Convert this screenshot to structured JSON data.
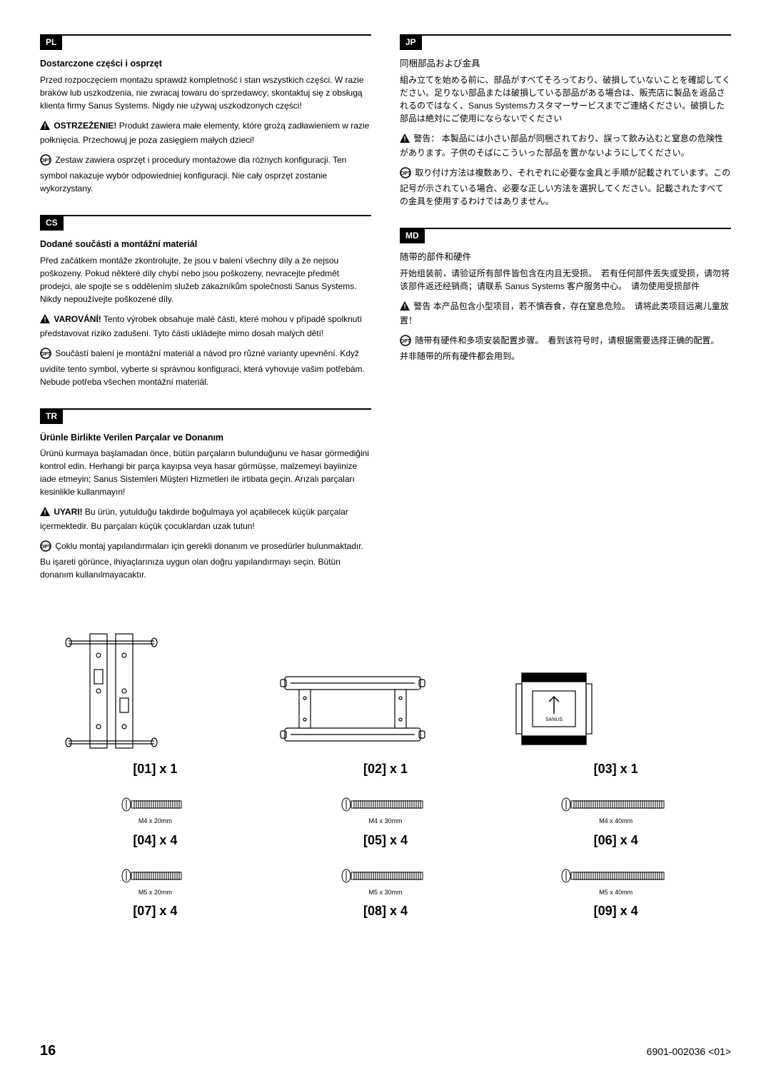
{
  "languages": {
    "pl": {
      "code": "PL",
      "title": "Dostarczone części i osprzęt",
      "body": "Przed rozpoczęciem montażu sprawdź kompletność i stan wszystkich części. W razie braków lub uszkodzenia, nie zwracaj towaru do sprzedawcy; skontaktuj się z obsługą klienta firmy Sanus Systems. Nigdy nie używaj uszkodzonych części!",
      "warning_label": "OSTRZEŻENIE!",
      "warning_text": "Produkt zawiera małe elementy, które grożą zadławieniem w razie połknięcia. Przechowuj je poza zasięgiem małych dzieci!",
      "opt_text": "Zestaw zawiera osprzęt i procedury montażowe dla różnych konfiguracji. Ten symbol nakazuje wybór odpowiedniej konfiguracji. Nie cały osprzęt zostanie wykorzystany."
    },
    "cs": {
      "code": "CS",
      "title": "Dodané součásti a montážní materiál",
      "body": "Před začátkem montáže zkontrolujte, že jsou v balení všechny díly a že nejsou poškozeny.  Pokud některé díly chybí nebo jsou poškozeny, nevracejte předmět prodejci, ale spojte se s oddělením služeb zákazníkům společnosti Sanus Systems.  Nikdy nepoužívejte poškozené díly.",
      "warning_label": "VAROVÁNÍ!",
      "warning_text": "Tento výrobek obsahuje malé části, které mohou v případě spolknutí představovat riziko zadušení.  Tyto části ukládejte mimo dosah malých dětí!",
      "opt_text": "Součástí balení je montážní materiál a návod pro různé varianty upevnění.  Když uvidíte tento symbol, vyberte si správnou konfiguraci, která vyhovuje vašim potřebám.  Nebude potřeba všechen montážní materiál."
    },
    "tr": {
      "code": "TR",
      "title": "Ürünle Birlikte Verilen Parçalar ve Donanım",
      "body": "Ürünü kurmaya başlamadan önce, bütün parçaların bulunduğunu ve hasar görmediğini kontrol edin. Herhangi bir parça kayıpsa veya hasar görmüşse, malzemeyi bayiinize iade etmeyin; Sanus Sistemleri Müşteri Hizmetleri ile irtibata geçin. Arızalı parçaları kesinlikle kullanmayın!",
      "warning_label": "UYARI!",
      "warning_text": "Bu ürün, yutulduğu takdirde boğulmaya yol açabilecek küçük parçalar içermektedir. Bu parçaları küçük çocuklardan uzak tutun!",
      "opt_text": "Çoklu montaj yapılandırmaları için gerekli donanım ve prosedürler bulunmaktadır. Bu işareti görünce, ihiyaçlarınıza uygun olan doğru yapılandırmayı seçin. Bütün donanım kullanılmayacaktır."
    },
    "jp": {
      "code": "JP",
      "title": "同梱部品および金具",
      "body": "組み立てを始める前に、部品がすべてそろっており、破損していないことを確認してください。足りない部品または破損している部品がある場合は、販売店に製品を返品されるのではなく、Sanus Systemsカスタマーサービスまでご連絡ください。破損した部品は絶対にご使用にならないでください",
      "warning_label": "警告：",
      "warning_text": "本製品には小さい部品が同梱されており、誤って飲み込むと窒息の危険性があります。子供のそばにこういった部品を置かないようにしてください。",
      "opt_text": "取り付け方法は複数あり、それぞれに必要な金具と手順が記載されています。この記号が示されている場合、必要な正しい方法を選択してください。記載されたすべての金具を使用するわけではありません。"
    },
    "md": {
      "code": "MD",
      "title": "随带的部件和硬件",
      "body": "开始组装前，请验证所有部件皆包含在内且无受损。　若有任何部件丢失或受损，请勿将该部件返还经销商；请联系 Sanus Systems 客户服务中心。　请勿使用受损部件",
      "warning_label": "警告",
      "warning_text": "本产品包含小型项目，若不慎吞食，存在窒息危险。　请将此类项目远离儿童放置！",
      "opt_text": "随带有硬件和多项安装配置步骤。　看到该符号时，请根据需要选择正确的配置。　并非随带的所有硬件都会用到。"
    }
  },
  "parts_main": [
    {
      "label": "[01] x 1"
    },
    {
      "label": "[02] x 1"
    },
    {
      "label": "[03] x 1"
    }
  ],
  "screws": [
    {
      "spec": "M4 x 20mm",
      "label": "[04] x 4",
      "len": 70
    },
    {
      "spec": "M4 x 30mm",
      "label": "[05] x 4",
      "len": 100
    },
    {
      "spec": "M4 x 40mm",
      "label": "[06] x 4",
      "len": 130
    },
    {
      "spec": "M5 x 20mm",
      "label": "[07] x 4",
      "len": 70
    },
    {
      "spec": "M5 x 30mm",
      "label": "[08] x 4",
      "len": 100
    },
    {
      "spec": "M5 x 40mm",
      "label": "[09] x 4",
      "len": 130
    }
  ],
  "footer": {
    "page": "16",
    "docnum": "6901-002036 <01>"
  }
}
